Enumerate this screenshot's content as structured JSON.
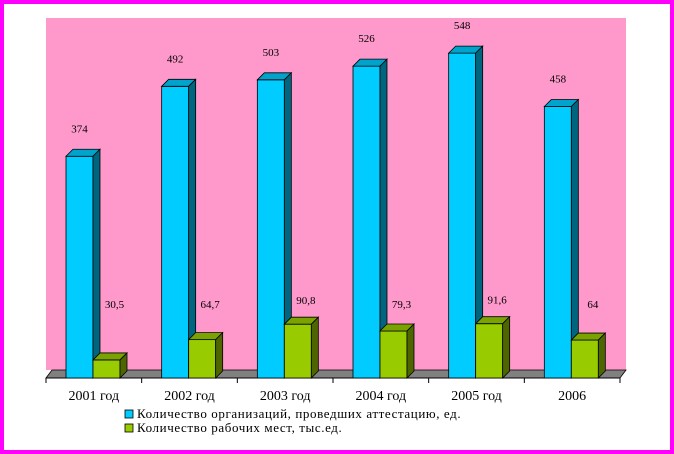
{
  "chart_data": {
    "type": "bar",
    "categories": [
      "2001 год",
      "2002 год",
      "2003 год",
      "2004 год",
      "2005 год",
      "2006"
    ],
    "series": [
      {
        "name": "Количество организаций, проведших аттестацию, ед.",
        "values": [
          374,
          492,
          503,
          526,
          548,
          458
        ],
        "labels": [
          "374",
          "492",
          "503",
          "526",
          "548",
          "458"
        ],
        "color": "#00ccff"
      },
      {
        "name": "Количество рабочих мест, тыс.ед.",
        "values": [
          30.5,
          64.7,
          90.8,
          79.3,
          91.6,
          64
        ],
        "labels": [
          "30,5",
          "64,7",
          "90,8",
          "79,3",
          "91,6",
          "64"
        ],
        "color": "#99cc00"
      }
    ],
    "ylim": [
      0,
      560
    ],
    "grid": false,
    "legend_position": "bottom",
    "colors": {
      "frame": "#ff00ff",
      "wall": "#ff99cc",
      "floor": "#808080"
    }
  }
}
